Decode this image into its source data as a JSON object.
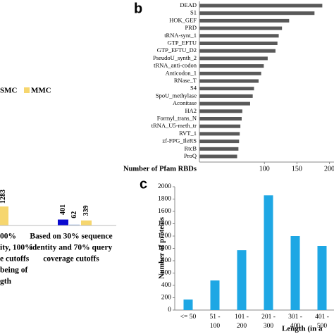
{
  "chart_data": [
    {
      "type": "bar",
      "categories": [
        [
          "00%",
          "ity, 100%",
          "e cutoffs",
          "being of",
          "gth"
        ],
        [
          "Based on 30% sequence",
          "identity and 70% query",
          "coverage cutoffs"
        ]
      ],
      "series": [
        {
          "color": "#0a0ad0",
          "values": [
            null,
            401
          ]
        },
        {
          "name": "SMC",
          "color": "#9fb9e0",
          "values": [
            null,
            62
          ]
        },
        {
          "name": "MMC",
          "color": "#f6d66e",
          "values": [
            1283,
            339
          ]
        }
      ]
    },
    {
      "type": "hbar",
      "label": "b",
      "categories": [
        "DEAD",
        "S1",
        "HOK_GEF",
        "PRD",
        "tRNA-synt_1",
        "GTP_EFTU",
        "GTP_EFTU_D2",
        "PseudoU_synth_2",
        "tRNA_anti-codon",
        "Anticodon_1",
        "RNase_T",
        "S4",
        "SpoU_methylase",
        "Aconitase",
        "HA2",
        "Formyl_trans_N",
        "tRNA_U5-meth_tr",
        "RVT_1",
        "zf-FPG_IleRS",
        "RtcB",
        "ProQ"
      ],
      "values": [
        189,
        177,
        138,
        127,
        122,
        120,
        117,
        105,
        99,
        95,
        91,
        84,
        82,
        78,
        66,
        65,
        63,
        62,
        61,
        60,
        58
      ],
      "color": "#595959",
      "xlabel": "Number of Pfam RBDs",
      "xlim": [
        0,
        207
      ],
      "xticks": [
        100,
        150,
        200
      ]
    },
    {
      "type": "bar",
      "label": "c",
      "categories": [
        [
          "<= 50"
        ],
        [
          "51 -",
          "100"
        ],
        [
          "101 -",
          "200"
        ],
        [
          "201 -",
          "300"
        ],
        [
          "301 -",
          "400"
        ],
        [
          "401 -",
          "500"
        ]
      ],
      "values": [
        170,
        480,
        970,
        1860,
        1200,
        1040
      ],
      "color": "#1ea7e4",
      "ylabel": "Number of proteins",
      "xlabel": "Length (in a",
      "ylim": [
        0,
        2000
      ],
      "yticks": [
        0,
        200,
        400,
        600,
        800,
        1000,
        1200,
        1400,
        1600,
        1800,
        2000
      ]
    }
  ]
}
